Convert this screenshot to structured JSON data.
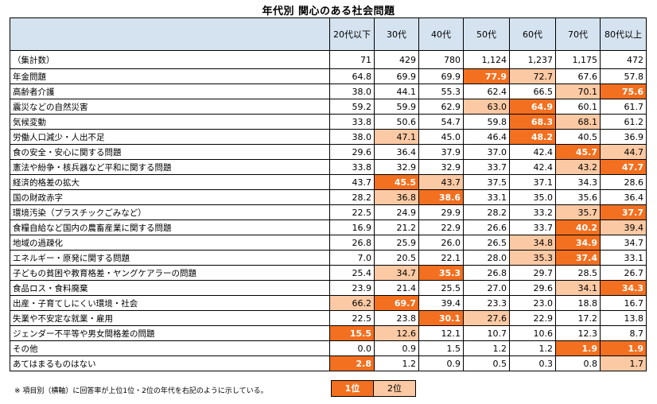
{
  "title": "年代別 関心のある社会問題",
  "columns": [
    "20代以下",
    "30代",
    "40代",
    "50代",
    "60代",
    "70代",
    "80代以上"
  ],
  "count_row": {
    "label": "（集計数）",
    "values": [
      "71",
      "429",
      "780",
      "1,124",
      "1,237",
      "1,175",
      "472"
    ]
  },
  "rows": [
    {
      "label": "年金問題",
      "values": [
        "64.8",
        "69.9",
        "69.9",
        "77.9",
        "72.7",
        "67.6",
        "57.8"
      ],
      "ranks": [
        0,
        0,
        0,
        1,
        2,
        0,
        0
      ]
    },
    {
      "label": "高齢者介護",
      "values": [
        "38.0",
        "44.1",
        "55.3",
        "62.4",
        "66.5",
        "70.1",
        "75.6"
      ],
      "ranks": [
        0,
        0,
        0,
        0,
        0,
        2,
        1
      ]
    },
    {
      "label": "震災などの自然災害",
      "values": [
        "59.2",
        "59.9",
        "62.9",
        "63.0",
        "64.9",
        "60.1",
        "61.7"
      ],
      "ranks": [
        0,
        0,
        0,
        2,
        1,
        0,
        0
      ]
    },
    {
      "label": "気候変動",
      "values": [
        "33.8",
        "50.6",
        "54.7",
        "59.8",
        "68.3",
        "68.1",
        "61.2"
      ],
      "ranks": [
        0,
        0,
        0,
        0,
        1,
        2,
        0
      ]
    },
    {
      "label": "労働人口減少・人出不足",
      "values": [
        "38.0",
        "47.1",
        "45.0",
        "46.4",
        "48.2",
        "40.5",
        "36.9"
      ],
      "ranks": [
        0,
        2,
        0,
        0,
        1,
        0,
        0
      ]
    },
    {
      "label": "食の安全・安心に関する問題",
      "values": [
        "29.6",
        "36.4",
        "37.9",
        "37.0",
        "42.4",
        "45.7",
        "44.7"
      ],
      "ranks": [
        0,
        0,
        0,
        0,
        0,
        1,
        2
      ]
    },
    {
      "label": "憲法や紛争・核兵器など平和に関する問題",
      "values": [
        "33.8",
        "32.9",
        "32.9",
        "33.7",
        "42.4",
        "43.2",
        "47.7"
      ],
      "ranks": [
        0,
        0,
        0,
        0,
        0,
        2,
        1
      ]
    },
    {
      "label": "経済的格差の拡大",
      "values": [
        "43.7",
        "45.5",
        "43.7",
        "37.5",
        "37.1",
        "34.3",
        "28.6"
      ],
      "ranks": [
        0,
        1,
        2,
        0,
        0,
        0,
        0
      ]
    },
    {
      "label": "国の財政赤字",
      "values": [
        "28.2",
        "36.8",
        "38.6",
        "33.1",
        "35.0",
        "35.6",
        "36.4"
      ],
      "ranks": [
        0,
        2,
        1,
        0,
        0,
        0,
        0
      ]
    },
    {
      "label": "環境汚染（プラスチックごみなど）",
      "values": [
        "22.5",
        "24.9",
        "29.9",
        "28.2",
        "33.2",
        "35.7",
        "37.7"
      ],
      "ranks": [
        0,
        0,
        0,
        0,
        0,
        2,
        1
      ]
    },
    {
      "label": "食糧自給など国内の農畜産業に関する問題",
      "values": [
        "16.9",
        "21.2",
        "22.9",
        "26.6",
        "33.7",
        "40.2",
        "39.4"
      ],
      "ranks": [
        0,
        0,
        0,
        0,
        0,
        1,
        2
      ]
    },
    {
      "label": "地域の過疎化",
      "values": [
        "26.8",
        "25.9",
        "26.0",
        "26.5",
        "34.8",
        "34.9",
        "34.7"
      ],
      "ranks": [
        0,
        0,
        0,
        0,
        2,
        1,
        0
      ]
    },
    {
      "label": "エネルギー・原発に関する問題",
      "values": [
        "7.0",
        "20.5",
        "22.1",
        "28.0",
        "35.3",
        "37.4",
        "33.1"
      ],
      "ranks": [
        0,
        0,
        0,
        0,
        2,
        1,
        0
      ]
    },
    {
      "label": "子どもの貧困や教育格差・ヤングケアラーの問題",
      "values": [
        "25.4",
        "34.7",
        "35.3",
        "26.8",
        "29.7",
        "28.5",
        "26.7"
      ],
      "ranks": [
        0,
        2,
        1,
        0,
        0,
        0,
        0
      ]
    },
    {
      "label": "食品ロス・食料廃棄",
      "values": [
        "23.9",
        "21.4",
        "25.5",
        "27.0",
        "29.6",
        "34.1",
        "34.3"
      ],
      "ranks": [
        0,
        0,
        0,
        0,
        0,
        2,
        1
      ]
    },
    {
      "label": "出産・子育てしにくい環境・社会",
      "values": [
        "66.2",
        "69.7",
        "39.4",
        "23.3",
        "23.0",
        "18.8",
        "16.7"
      ],
      "ranks": [
        2,
        1,
        0,
        0,
        0,
        0,
        0
      ]
    },
    {
      "label": "失業や不安定な就業・雇用",
      "values": [
        "22.5",
        "23.8",
        "30.1",
        "27.6",
        "22.9",
        "17.2",
        "13.8"
      ],
      "ranks": [
        0,
        0,
        1,
        2,
        0,
        0,
        0
      ]
    },
    {
      "label": "ジェンダー不平等や男女間格差の問題",
      "values": [
        "15.5",
        "12.6",
        "12.1",
        "10.7",
        "10.6",
        "12.3",
        "8.7"
      ],
      "ranks": [
        1,
        2,
        0,
        0,
        0,
        0,
        0
      ]
    },
    {
      "label": "その他",
      "values": [
        "0.0",
        "0.9",
        "1.5",
        "1.2",
        "1.2",
        "1.9",
        "1.9"
      ],
      "ranks": [
        0,
        0,
        0,
        0,
        0,
        1,
        1
      ]
    },
    {
      "label": "あてはまるものはない",
      "values": [
        "2.8",
        "1.2",
        "0.9",
        "0.5",
        "0.3",
        "0.8",
        "1.7"
      ],
      "ranks": [
        1,
        0,
        0,
        0,
        0,
        0,
        2
      ]
    }
  ],
  "note": "※ 項目別（横軸）に回答率が上位1位・2位の年代を右記のように示している。",
  "legend": {
    "first": "1位",
    "second": "2位"
  },
  "colors": {
    "rank1": "#f37020",
    "rank2": "#fbc9a3",
    "header": "#d5e3f0"
  }
}
